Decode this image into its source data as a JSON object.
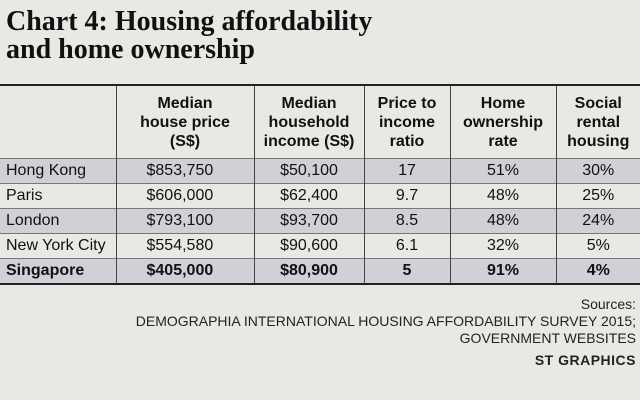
{
  "chart_data": {
    "type": "table",
    "title_lines": [
      "Chart 4: Housing affordability",
      "and home ownership"
    ],
    "columns": [
      {
        "label_lines": [
          "",
          ""
        ]
      },
      {
        "label_lines": [
          "Median",
          "house price",
          "(S$)"
        ]
      },
      {
        "label_lines": [
          "Median",
          "household",
          "income (S$)"
        ]
      },
      {
        "label_lines": [
          "Price to",
          "income",
          "ratio"
        ]
      },
      {
        "label_lines": [
          "Home",
          "ownership",
          "rate"
        ]
      },
      {
        "label_lines": [
          "Social",
          "rental",
          "housing"
        ]
      }
    ],
    "rows": [
      {
        "city": "Hong Kong",
        "price": "$853,750",
        "income": "$50,100",
        "ratio": "17",
        "ownership": "51%",
        "rental": "30%"
      },
      {
        "city": "Paris",
        "price": "$606,000",
        "income": "$62,400",
        "ratio": "9.7",
        "ownership": "48%",
        "rental": "25%"
      },
      {
        "city": "London",
        "price": "$793,100",
        "income": "$93,700",
        "ratio": "8.5",
        "ownership": "48%",
        "rental": "24%"
      },
      {
        "city": "New York City",
        "price": "$554,580",
        "income": "$90,600",
        "ratio": "6.1",
        "ownership": "32%",
        "rental": "5%"
      },
      {
        "city": "Singapore",
        "price": "$405,000",
        "income": "$80,900",
        "ratio": "5",
        "ownership": "91%",
        "rental": "4%"
      }
    ],
    "highlight_row": "Singapore",
    "sources_label": "Sources:",
    "sources_lines": [
      "DEMOGRAPHIA INTERNATIONAL HOUSING AFFORDABILITY SURVEY 2015;",
      "GOVERNMENT WEBSITES"
    ],
    "credit": "ST GRAPHICS",
    "colors": {
      "background": "#e8e8e4",
      "row_shade": "#cfd1d6",
      "text": "#111111",
      "rule": "#222222"
    }
  }
}
